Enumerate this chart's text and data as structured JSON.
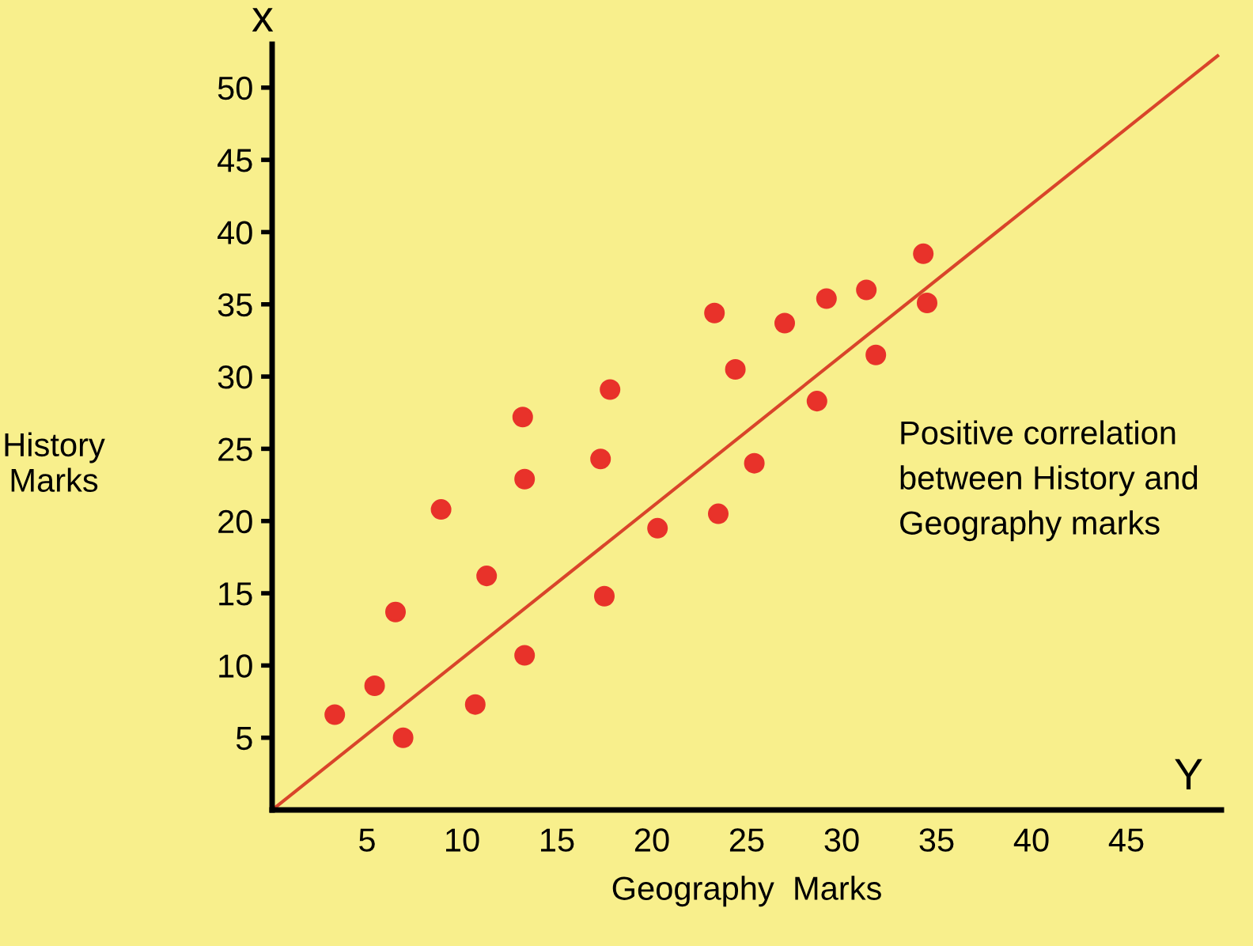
{
  "chart_data": {
    "type": "scatter",
    "xlabel": "Geography  Marks",
    "ylabel": "History\nMarks",
    "annotations": [
      "Positive correlation\nbetween History and\nGeography marks",
      "x",
      "Y"
    ],
    "xlim": [
      0,
      50
    ],
    "ylim": [
      0,
      53
    ],
    "xticks": [
      5,
      10,
      15,
      20,
      25,
      30,
      35,
      40,
      45
    ],
    "yticks": [
      5,
      10,
      15,
      20,
      25,
      30,
      35,
      40,
      45,
      50
    ],
    "grid": false,
    "legend": false,
    "series": [
      {
        "marker": "circle",
        "color": "#e8322a",
        "x": [
          3.3,
          5.4,
          6.5,
          6.9,
          8.9,
          10.7,
          11.3,
          13.2,
          13.3,
          13.3,
          17.3,
          17.5,
          17.8,
          20.3,
          23.3,
          23.5,
          24.4,
          25.4,
          27.0,
          28.7,
          29.2,
          31.3,
          31.8,
          34.3,
          34.5
        ],
        "values": [
          6.6,
          8.6,
          13.7,
          5.0,
          20.8,
          7.3,
          16.2,
          27.2,
          22.9,
          10.7,
          24.3,
          14.8,
          29.1,
          19.5,
          34.4,
          20.5,
          30.5,
          24.0,
          33.7,
          28.3,
          35.4,
          36.0,
          31.5,
          38.5,
          35.1
        ]
      },
      {
        "type": "line",
        "marker": "none",
        "color": "#d9442a",
        "x": [
          0,
          49.8
        ],
        "values": [
          0,
          52.2
        ]
      }
    ]
  }
}
